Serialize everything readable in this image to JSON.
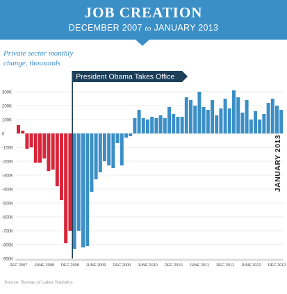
{
  "header": {
    "title": "JOB CREATION",
    "subtitle_start": "DECEMBER 2007",
    "subtitle_connector": "to",
    "subtitle_end": "JANUARY 2013",
    "color": "#3b8fc7"
  },
  "source": "Source: Bureau of Labor Statistics",
  "colors": {
    "before": "#d7253a",
    "after": "#3b8fc7",
    "annotation": "#1c3f5a",
    "grid": "#dddddd"
  },
  "chart_data": {
    "type": "bar",
    "ylabel": "Private sector monthly\nchange, thousands",
    "ylim": [
      -900,
      350
    ],
    "yticks": [
      {
        "value": 300,
        "label": "300K"
      },
      {
        "value": 200,
        "label": "200K"
      },
      {
        "value": 100,
        "label": "100K"
      },
      {
        "value": 0,
        "label": "0"
      },
      {
        "value": -100,
        "label": "-100K"
      },
      {
        "value": -200,
        "label": "-200K"
      },
      {
        "value": -300,
        "label": "-300K"
      },
      {
        "value": -400,
        "label": "-400K"
      },
      {
        "value": -500,
        "label": "-500K"
      },
      {
        "value": -600,
        "label": "-600K"
      },
      {
        "value": -700,
        "label": "-700K"
      },
      {
        "value": -800,
        "label": "-800K"
      },
      {
        "value": -900,
        "label": "-900K"
      }
    ],
    "xticks": [
      {
        "index": 0,
        "label": "DEC 2007"
      },
      {
        "index": 6,
        "label": "JUNE 2008"
      },
      {
        "index": 12,
        "label": "DEC 2008"
      },
      {
        "index": 18,
        "label": "JUNE 2009"
      },
      {
        "index": 24,
        "label": "DEC 2009"
      },
      {
        "index": 30,
        "label": "JUNE 2010"
      },
      {
        "index": 36,
        "label": "DEC 2010"
      },
      {
        "index": 42,
        "label": "JUNE 2011"
      },
      {
        "index": 48,
        "label": "DEC 2011"
      },
      {
        "index": 54,
        "label": "JUNE 2012"
      },
      {
        "index": 60,
        "label": "DEC 2012"
      }
    ],
    "annotation": {
      "index": 13,
      "label": "President Obama Takes Office"
    },
    "end_label": "JANUARY 2013",
    "series": [
      {
        "color": "#d7253a",
        "values": [
          60,
          20,
          -110,
          -100,
          -210,
          -210,
          -180,
          -270,
          -260,
          -380,
          -480,
          -790,
          -700
        ]
      },
      {
        "color": "#3b8fc7",
        "values": [
          -830,
          -700,
          -820,
          -810,
          -420,
          -330,
          -280,
          -200,
          -230,
          -250,
          -70,
          -230,
          -30,
          -20,
          110,
          170,
          110,
          100,
          120,
          110,
          130,
          110,
          190,
          140,
          120,
          120,
          260,
          240,
          200,
          300,
          190,
          170,
          240,
          130,
          180,
          250,
          180,
          310,
          260,
          150,
          240,
          100,
          160,
          100,
          140,
          220,
          250,
          200,
          170
        ]
      }
    ]
  }
}
